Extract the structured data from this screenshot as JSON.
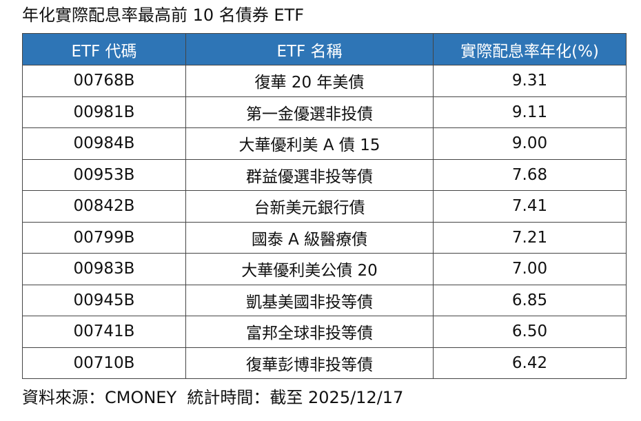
{
  "header": {
    "title": "年化實際配息率最高前 10 名債券 ETF"
  },
  "table": {
    "columns": [
      "ETF 代碼",
      "ETF 名稱",
      "實際配息率年化(%)"
    ],
    "rows": [
      [
        "00768B",
        "復華 20 年美債",
        "9.31"
      ],
      [
        "00981B",
        "第一金優選非投債",
        "9.11"
      ],
      [
        "00984B",
        "大華優利美 A 債 15",
        "9.00"
      ],
      [
        "00953B",
        "群益優選非投等債",
        "7.68"
      ],
      [
        "00842B",
        "台新美元銀行債",
        "7.41"
      ],
      [
        "00799B",
        "國泰 A 級醫療債",
        "7.21"
      ],
      [
        "00983B",
        "大華優利美公債 20",
        "7.00"
      ],
      [
        "00945B",
        "凱基美國非投等債",
        "6.85"
      ],
      [
        "00741B",
        "富邦全球非投等債",
        "6.50"
      ],
      [
        "00710B",
        "復華彭博非投等債",
        "6.42"
      ]
    ]
  },
  "footer": {
    "source": "資料來源：CMONEY  統計時間：截至 2025/12/17"
  }
}
